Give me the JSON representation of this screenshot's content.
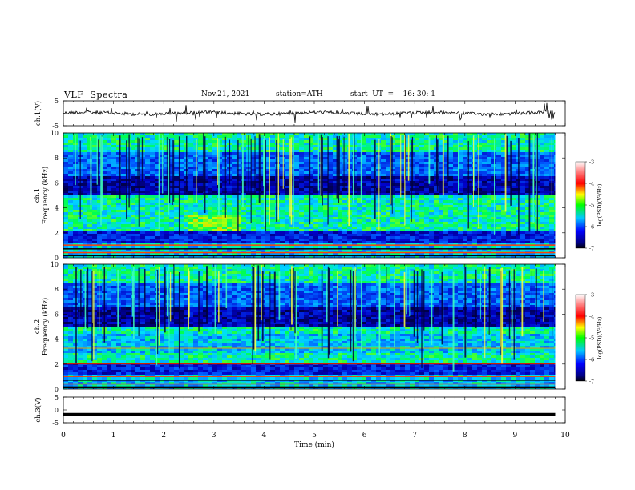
{
  "header": {
    "title": "VLF  Spectra",
    "date": "Nov.21, 2021",
    "station": "station=ATH",
    "start": "start  UT  =    16: 30: 1"
  },
  "chart_data": [
    {
      "type": "line",
      "id": "ch1-waveform",
      "ylabel": "ch.1(V)",
      "ylim": [
        -5,
        5
      ],
      "yticks": [
        "5",
        "-5"
      ],
      "xlim": [
        0,
        10
      ],
      "series": [
        {
          "color": "#000000",
          "baseline": 0,
          "data_extent_min": 9.8
        }
      ]
    },
    {
      "type": "heatmap",
      "id": "ch1-spectrogram",
      "ylabel": "ch.1\nFrequency  (kHz)",
      "ylim": [
        0,
        10
      ],
      "yticks": [
        "0",
        "2",
        "4",
        "6",
        "8",
        "10"
      ],
      "xlim": [
        0,
        10
      ],
      "data_extent_min": 9.8,
      "colorbar": {
        "label": "log(PSD)(V²/Hz)",
        "ticks": [
          "-3",
          "-4",
          "-5",
          "-6",
          "-7"
        ],
        "range": [
          -7,
          -3
        ]
      }
    },
    {
      "type": "heatmap",
      "id": "ch2-spectrogram",
      "ylabel": "ch.2\nFrequency  (kHz)",
      "ylim": [
        0,
        10
      ],
      "yticks": [
        "0",
        "2",
        "4",
        "6",
        "8",
        "10"
      ],
      "xlim": [
        0,
        10
      ],
      "data_extent_min": 9.8,
      "colorbar": {
        "label": "log(PSD)(V²/Hz)",
        "ticks": [
          "-3",
          "-4",
          "-5",
          "-6",
          "-7"
        ],
        "range": [
          -7,
          -3
        ]
      }
    },
    {
      "type": "line",
      "id": "ch3-waveform",
      "ylabel": "ch.3(V)",
      "ylim": [
        -5,
        5
      ],
      "yticks": [
        "5",
        "0",
        "-5"
      ],
      "xlim": [
        0,
        10
      ],
      "series": [
        {
          "color": "#000000",
          "baseline": -1.8,
          "data_extent_min": 9.8
        }
      ]
    }
  ],
  "xaxis": {
    "label": "Time  (min)",
    "ticks": [
      "0",
      "1",
      "2",
      "3",
      "4",
      "5",
      "6",
      "7",
      "8",
      "9",
      "10"
    ]
  }
}
